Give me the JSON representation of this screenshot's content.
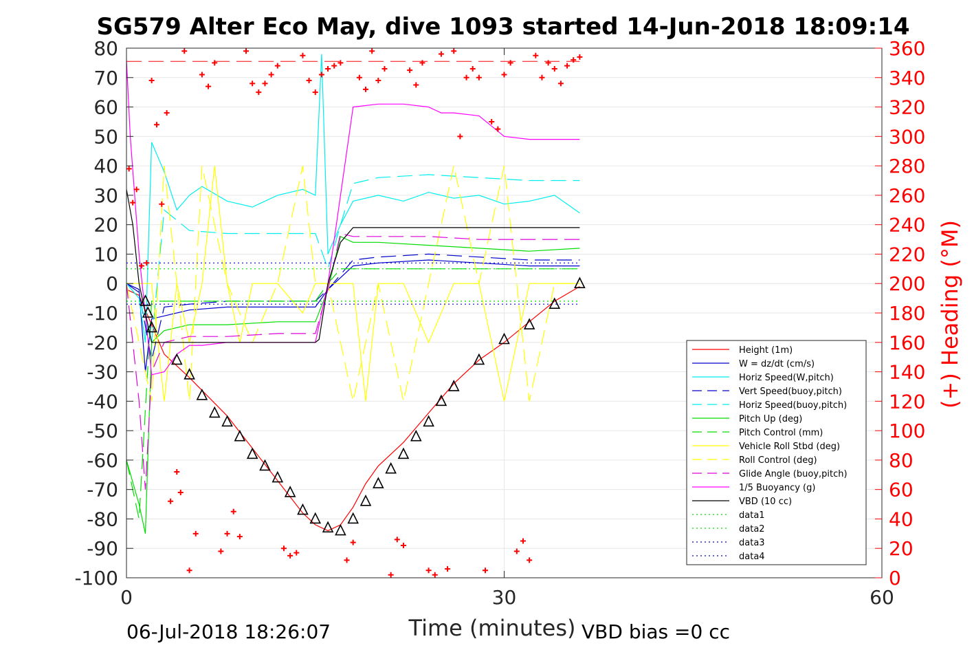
{
  "chart_data": {
    "type": "line",
    "title": "SG579 Alter Eco May, dive 1093 started 14-Jun-2018 18:09:14",
    "xlabel": "Time (minutes)",
    "ylabel": "",
    "ylabel_right": "(+) Heading (°M)",
    "xlim": [
      0,
      60
    ],
    "ylim": [
      -100,
      80
    ],
    "ylim_right": [
      0,
      360
    ],
    "xticks": [
      "0",
      "30",
      "60"
    ],
    "yticks": [
      "80",
      "70",
      "60",
      "50",
      "40",
      "30",
      "20",
      "10",
      "0",
      "-10",
      "-20",
      "-30",
      "-40",
      "-50",
      "-60",
      "-70",
      "-80",
      "-90",
      "-100"
    ],
    "yticks_right": [
      "360",
      "340",
      "320",
      "300",
      "280",
      "260",
      "240",
      "220",
      "200",
      "180",
      "160",
      "140",
      "120",
      "100",
      "80",
      "60",
      "40",
      "20",
      "0"
    ],
    "grid": true,
    "legend_position": "lower-right",
    "footer_left": "06-Jul-2018 18:26:07",
    "footer_right": "VBD bias =0 cc",
    "series": [
      {
        "name": "Height (1m)",
        "color": "#ff0000",
        "style": "solid",
        "axis": "left",
        "x": [
          0,
          1,
          2,
          3,
          5,
          8,
          10,
          12,
          14,
          15,
          16,
          17,
          18,
          19,
          20,
          22,
          24,
          26,
          28,
          30,
          32,
          34,
          36
        ],
        "y": [
          -2,
          -4,
          -14,
          -24,
          -32,
          -45,
          -56,
          -67,
          -78,
          -82,
          -84,
          -82,
          -76,
          -68,
          -62,
          -54,
          -44,
          -34,
          -26,
          -20,
          -13,
          -6,
          -1
        ]
      },
      {
        "name": "W = dz/dt (cm/s)",
        "color": "#0000cc",
        "style": "solid",
        "axis": "left",
        "x": [
          0,
          1,
          1.5,
          2,
          3,
          5,
          8,
          12,
          15,
          16,
          17,
          18,
          20,
          24,
          28,
          32,
          36
        ],
        "y": [
          0,
          -2,
          -30,
          -12,
          -11,
          -9,
          -8,
          -8,
          -8,
          -2,
          2,
          6,
          7,
          8,
          7,
          6,
          6
        ]
      },
      {
        "name": "Horiz Speed(W,pitch)",
        "color": "#00eeee",
        "style": "solid",
        "axis": "left",
        "x": [
          0,
          1,
          1.5,
          2,
          3,
          4,
          5,
          6,
          8,
          10,
          12,
          14,
          15,
          15.5,
          16,
          17,
          18,
          20,
          22,
          24,
          26,
          28,
          30,
          32,
          34,
          36
        ],
        "y": [
          0,
          -5,
          -20,
          48,
          38,
          25,
          30,
          33,
          28,
          26,
          30,
          32,
          30,
          78,
          10,
          20,
          28,
          30,
          28,
          31,
          29,
          30,
          27,
          28,
          30,
          24
        ]
      },
      {
        "name": "Vert Speed(buoy,pitch)",
        "color": "#0000cc",
        "style": "dashed",
        "axis": "left",
        "x": [
          0,
          1,
          2,
          3,
          5,
          8,
          12,
          15,
          16,
          17,
          18,
          20,
          24,
          28,
          32,
          36
        ],
        "y": [
          0,
          -3,
          -26,
          -8,
          -7,
          -6,
          -6,
          -6,
          -2,
          3,
          8,
          9,
          10,
          9,
          8,
          8
        ]
      },
      {
        "name": "Horiz Speed(buoy,pitch)",
        "color": "#00eeee",
        "style": "dashed",
        "axis": "left",
        "x": [
          0,
          1,
          2,
          3,
          5,
          8,
          12,
          15,
          16,
          17,
          18,
          20,
          24,
          28,
          32,
          36
        ],
        "y": [
          0,
          -5,
          -20,
          25,
          18,
          17,
          17,
          17,
          5,
          20,
          34,
          36,
          37,
          36,
          35,
          35
        ]
      },
      {
        "name": "Pitch Up (deg)",
        "color": "#00dd00",
        "style": "solid",
        "axis": "left",
        "x": [
          0,
          1,
          1.5,
          2,
          3,
          5,
          8,
          12,
          15,
          16,
          17,
          18,
          20,
          24,
          28,
          32,
          36
        ],
        "y": [
          -60,
          -75,
          -85,
          -20,
          -16,
          -14,
          -14,
          -13,
          -13,
          -2,
          16,
          14,
          14,
          13,
          12,
          11,
          12
        ]
      },
      {
        "name": "Pitch Control (mm)",
        "color": "#00dd00",
        "style": "dashed",
        "axis": "left",
        "x": [
          0,
          1,
          2,
          3,
          5,
          8,
          12,
          15,
          16,
          17,
          18,
          20,
          24,
          28,
          32,
          36
        ],
        "y": [
          -60,
          -80,
          -6,
          -6,
          -6,
          -6,
          -6,
          -6,
          0,
          5,
          5,
          5,
          5,
          5,
          5,
          5
        ]
      },
      {
        "name": "Vehicle Roll Stbd (deg)",
        "color": "#ffff00",
        "style": "solid",
        "axis": "left",
        "x": [
          0,
          2,
          3,
          4,
          5,
          6,
          7,
          8,
          9,
          10,
          12,
          14,
          15,
          16,
          18,
          19,
          20,
          22,
          24,
          26,
          28,
          30,
          32,
          34,
          36
        ],
        "y": [
          0,
          0,
          -40,
          0,
          -20,
          0,
          40,
          0,
          -20,
          0,
          0,
          -10,
          0,
          0,
          0,
          -40,
          0,
          0,
          -20,
          0,
          0,
          -40,
          0,
          0,
          0
        ]
      },
      {
        "name": "Roll Control (deg)",
        "color": "#ffff00",
        "style": "dashed",
        "axis": "left",
        "x": [
          0,
          2,
          3,
          4,
          5,
          6,
          8,
          10,
          12,
          14,
          15,
          16,
          18,
          20,
          22,
          24,
          26,
          28,
          30,
          32,
          34,
          36
        ],
        "y": [
          0,
          -40,
          40,
          0,
          -40,
          40,
          0,
          -20,
          0,
          40,
          0,
          0,
          -40,
          0,
          -40,
          0,
          40,
          0,
          40,
          -40,
          0,
          0
        ]
      },
      {
        "name": "Glide Angle (buoy,pitch)",
        "color": "#dd00dd",
        "style": "dashed",
        "axis": "left",
        "x": [
          0,
          1,
          1.5,
          2,
          3,
          5,
          8,
          12,
          15,
          16,
          17,
          18,
          20,
          24,
          28,
          32,
          36
        ],
        "y": [
          0,
          -40,
          -70,
          -30,
          -20,
          -18,
          -18,
          -17,
          -17,
          -2,
          17,
          16,
          16,
          16,
          15,
          15,
          15
        ]
      },
      {
        "name": "1/5 Buoyancy (g)",
        "color": "#ff00ff",
        "style": "solid",
        "axis": "left",
        "x": [
          0,
          0.3,
          1,
          2,
          3,
          4,
          5,
          6,
          8,
          10,
          12,
          14,
          15,
          16,
          17,
          18,
          20,
          22,
          24,
          25,
          26,
          28,
          30,
          32,
          34,
          36
        ],
        "y": [
          76,
          50,
          10,
          -31,
          -30,
          -24,
          -21,
          -21,
          -20,
          -20,
          -20,
          -20,
          -20,
          0,
          30,
          60,
          61,
          61,
          60,
          58,
          58,
          57,
          50,
          49,
          49,
          49
        ]
      },
      {
        "name": "VBD (10 cc)",
        "color": "#000000",
        "style": "solid",
        "axis": "left",
        "x": [
          0,
          0.5,
          1,
          2,
          3,
          5,
          8,
          12,
          15,
          15.3,
          16,
          17,
          18,
          20,
          24,
          28,
          32,
          36
        ],
        "y": [
          32,
          20,
          0,
          -20,
          -20,
          -20,
          -20,
          -20,
          -20,
          -19,
          0,
          14,
          19,
          19,
          19,
          19,
          19,
          19
        ]
      },
      {
        "name": "data1",
        "color": "#00dd00",
        "style": "dotted",
        "axis": "left",
        "x": [
          0,
          36
        ],
        "y": [
          -6,
          -6
        ]
      },
      {
        "name": "data2",
        "color": "#00dd00",
        "style": "dotted",
        "axis": "left",
        "x": [
          0,
          36
        ],
        "y": [
          5,
          5
        ]
      },
      {
        "name": "data3",
        "color": "#0000cc",
        "style": "dotted",
        "axis": "left",
        "x": [
          0,
          36
        ],
        "y": [
          7,
          7
        ]
      },
      {
        "name": "data4",
        "color": "#0000cc",
        "style": "dotted",
        "axis": "left",
        "x": [
          0,
          36
        ],
        "y": [
          -7,
          -7
        ]
      }
    ],
    "heading_reference": {
      "axis": "right",
      "value": 351,
      "color": "#ff0000",
      "style": "dashed",
      "x": [
        0,
        36
      ]
    },
    "heading_points": {
      "axis": "right",
      "color": "#ff0000",
      "marker": "+",
      "x": [
        0.2,
        0.5,
        0.8,
        1.2,
        1.6,
        2,
        2.4,
        2.8,
        3.2,
        3.5,
        4,
        4.3,
        4.6,
        5,
        5.5,
        6,
        6.5,
        7,
        7.5,
        8,
        8.5,
        9,
        9.5,
        10,
        10.5,
        11,
        11.5,
        12,
        12.5,
        13,
        13.5,
        14,
        14.5,
        15,
        15.5,
        16,
        16.5,
        17,
        17.5,
        18,
        18.5,
        19,
        19.5,
        20,
        20.5,
        21,
        21.5,
        22,
        22.5,
        23,
        23.5,
        24,
        24.5,
        25,
        25.5,
        26,
        26.5,
        27,
        27.5,
        28,
        28.5,
        29,
        29.5,
        30,
        30.5,
        31,
        31.5,
        32,
        32.5,
        33,
        33.5,
        34,
        34.5,
        35,
        35.5,
        36
      ],
      "y": [
        278,
        255,
        264,
        212,
        214,
        338,
        308,
        254,
        316,
        52,
        72,
        58,
        358,
        5,
        30,
        342,
        334,
        350,
        18,
        30,
        45,
        28,
        358,
        336,
        330,
        336,
        342,
        348,
        20,
        15,
        17,
        355,
        338,
        330,
        342,
        346,
        348,
        350,
        12,
        24,
        340,
        332,
        358,
        338,
        346,
        2,
        26,
        22,
        345,
        335,
        350,
        5,
        2,
        356,
        6,
        358,
        300,
        340,
        346,
        340,
        5,
        310,
        305,
        342,
        350,
        18,
        25,
        12,
        355,
        340,
        350,
        346,
        336,
        348,
        352,
        354
      ]
    },
    "depth_triangles": {
      "color": "#000000",
      "x": [
        1.5,
        1.7,
        2,
        4,
        5,
        6,
        7,
        8,
        9,
        10,
        11,
        12,
        13,
        14,
        15,
        16,
        17,
        18,
        19,
        20,
        21,
        22,
        23,
        24,
        25,
        26,
        28,
        30,
        32,
        34,
        36
      ],
      "y": [
        -6,
        -10,
        -15,
        -26,
        -31,
        -38,
        -44,
        -47,
        -52,
        -58,
        -62,
        -66,
        -71,
        -77,
        -80,
        -83,
        -84,
        -80,
        -74,
        -68,
        -63,
        -58,
        -52,
        -47,
        -40,
        -35,
        -26,
        -19,
        -14,
        -7,
        0
      ]
    }
  }
}
